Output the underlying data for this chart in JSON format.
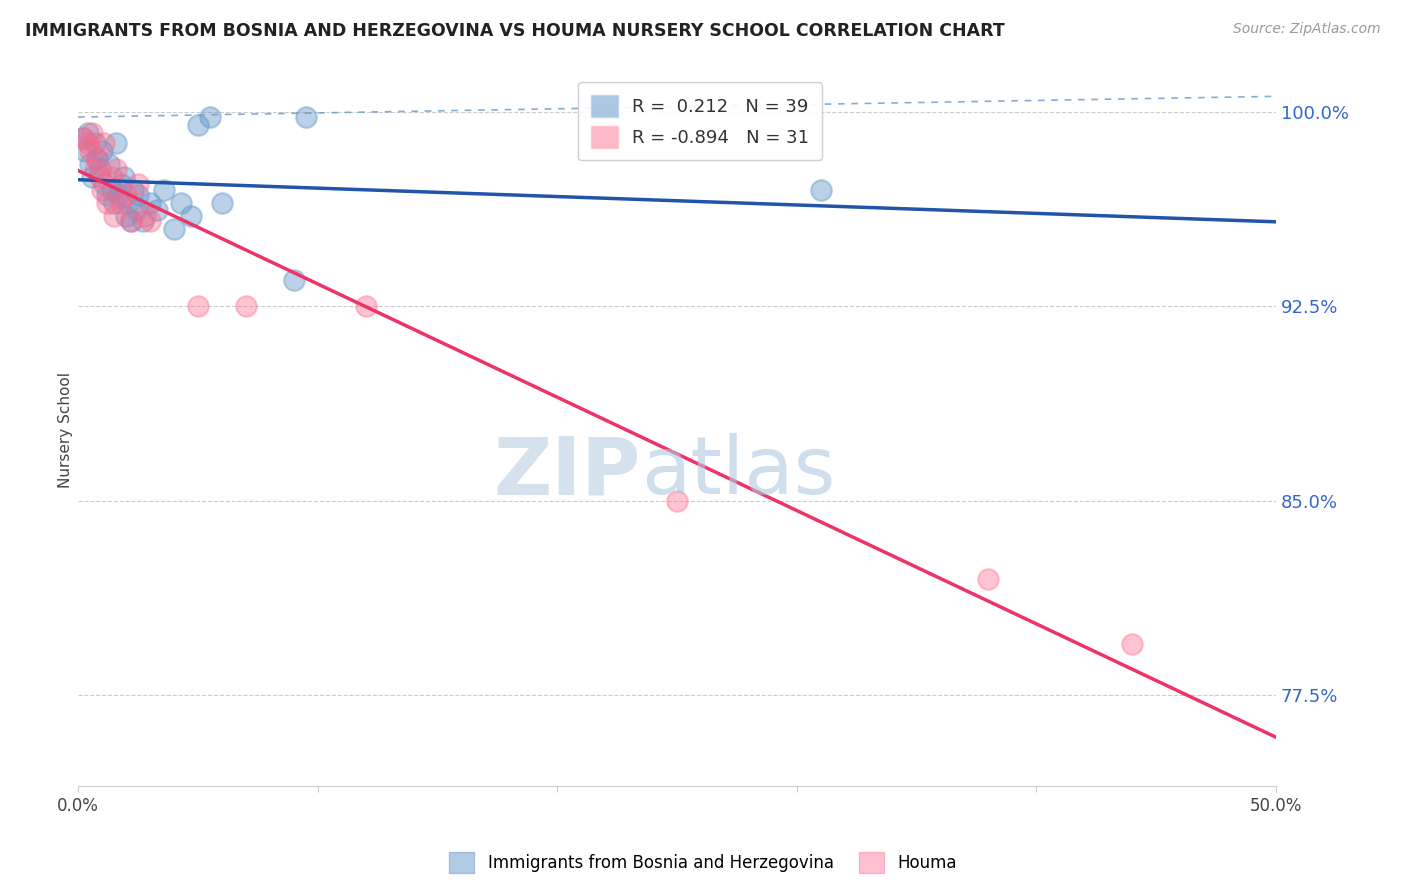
{
  "title": "IMMIGRANTS FROM BOSNIA AND HERZEGOVINA VS HOUMA NURSERY SCHOOL CORRELATION CHART",
  "source": "Source: ZipAtlas.com",
  "ylabel": "Nursery School",
  "xlim": [
    0.0,
    0.5
  ],
  "ylim": [
    0.74,
    1.015
  ],
  "yticks": [
    0.775,
    0.85,
    0.925,
    1.0
  ],
  "ytick_labels": [
    "77.5%",
    "85.0%",
    "92.5%",
    "100.0%"
  ],
  "xticks": [
    0.0,
    0.1,
    0.2,
    0.3,
    0.4,
    0.5
  ],
  "xtick_labels": [
    "0.0%",
    "",
    "",
    "",
    "",
    "50.0%"
  ],
  "blue_R": 0.212,
  "blue_N": 39,
  "pink_R": -0.894,
  "pink_N": 31,
  "blue_color": "#6699CC",
  "pink_color": "#FF6688",
  "blue_line_color": "#2255AA",
  "pink_line_color": "#EE3366",
  "watermark_zip": "ZIP",
  "watermark_atlas": "atlas",
  "blue_scatter_x": [
    0.002,
    0.003,
    0.004,
    0.005,
    0.006,
    0.007,
    0.008,
    0.009,
    0.01,
    0.011,
    0.012,
    0.013,
    0.014,
    0.015,
    0.016,
    0.017,
    0.018,
    0.019,
    0.02,
    0.021,
    0.022,
    0.023,
    0.024,
    0.025,
    0.027,
    0.03,
    0.033,
    0.036,
    0.04,
    0.043,
    0.047,
    0.05,
    0.055,
    0.06,
    0.09,
    0.095,
    0.31
  ],
  "blue_scatter_y": [
    0.99,
    0.985,
    0.992,
    0.98,
    0.975,
    0.988,
    0.982,
    0.978,
    0.985,
    0.972,
    0.968,
    0.98,
    0.97,
    0.965,
    0.988,
    0.968,
    0.972,
    0.975,
    0.96,
    0.965,
    0.958,
    0.97,
    0.962,
    0.968,
    0.958,
    0.965,
    0.962,
    0.97,
    0.955,
    0.965,
    0.96,
    0.995,
    0.998,
    0.965,
    0.935,
    0.998,
    0.97
  ],
  "pink_scatter_x": [
    0.002,
    0.004,
    0.005,
    0.006,
    0.007,
    0.008,
    0.009,
    0.01,
    0.011,
    0.012,
    0.014,
    0.015,
    0.016,
    0.018,
    0.02,
    0.022,
    0.025,
    0.028,
    0.03,
    0.05,
    0.07,
    0.12,
    0.25,
    0.38,
    0.44
  ],
  "pink_scatter_y": [
    0.99,
    0.988,
    0.985,
    0.992,
    0.978,
    0.982,
    0.975,
    0.97,
    0.988,
    0.965,
    0.975,
    0.96,
    0.978,
    0.965,
    0.968,
    0.958,
    0.972,
    0.96,
    0.958,
    0.925,
    0.925,
    0.925,
    0.85,
    0.82,
    0.795
  ]
}
